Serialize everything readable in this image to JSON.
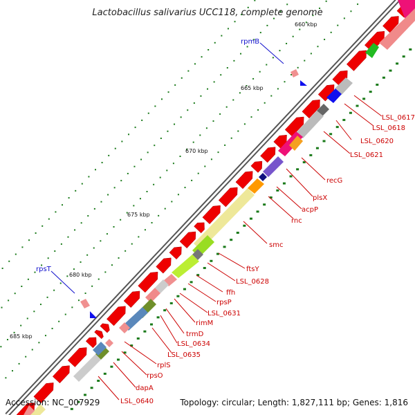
{
  "title": "Lactobacillus salivarius UCC118, complete genome",
  "footer": {
    "accession": "Accession: NC_007929",
    "topology": "Topology: circular; Length: 1,827,111 bp; Genes: 1,816"
  },
  "ticks": [
    "660 kbp",
    "665 kbp",
    "670 kbp",
    "675 kbp",
    "680 kbp",
    "685 kbp"
  ],
  "labels": {
    "rpmB": "rpmB",
    "rpsT": "rpsT",
    "LSL_0617": "LSL_0617",
    "LSL_0618": "LSL_0618",
    "LSL_0620": "LSL_0620",
    "LSL_0621": "LSL_0621",
    "recG": "recG",
    "plsX": "plsX",
    "acpP": "acpP",
    "rnc": "rnc",
    "smc": "smc",
    "ftsY": "ftsY",
    "LSL_0628": "LSL_0628",
    "ffh": "ffh",
    "rpsP": "rpsP",
    "LSL_0631": "LSL_0631",
    "rimM": "rimM",
    "trmD": "trmD",
    "LSL_0634": "LSL_0634",
    "LSL_0635": "LSL_0635",
    "rplS": "rplS",
    "rpsO": "rpsO",
    "dapA": "dapA",
    "LSL_0640": "LSL_0640"
  },
  "colors": {
    "cds": "#ee0000",
    "backbone": "#888888",
    "tick": "#1a7a1a",
    "label_red": "#cc0000",
    "label_blue": "#1010cc"
  }
}
